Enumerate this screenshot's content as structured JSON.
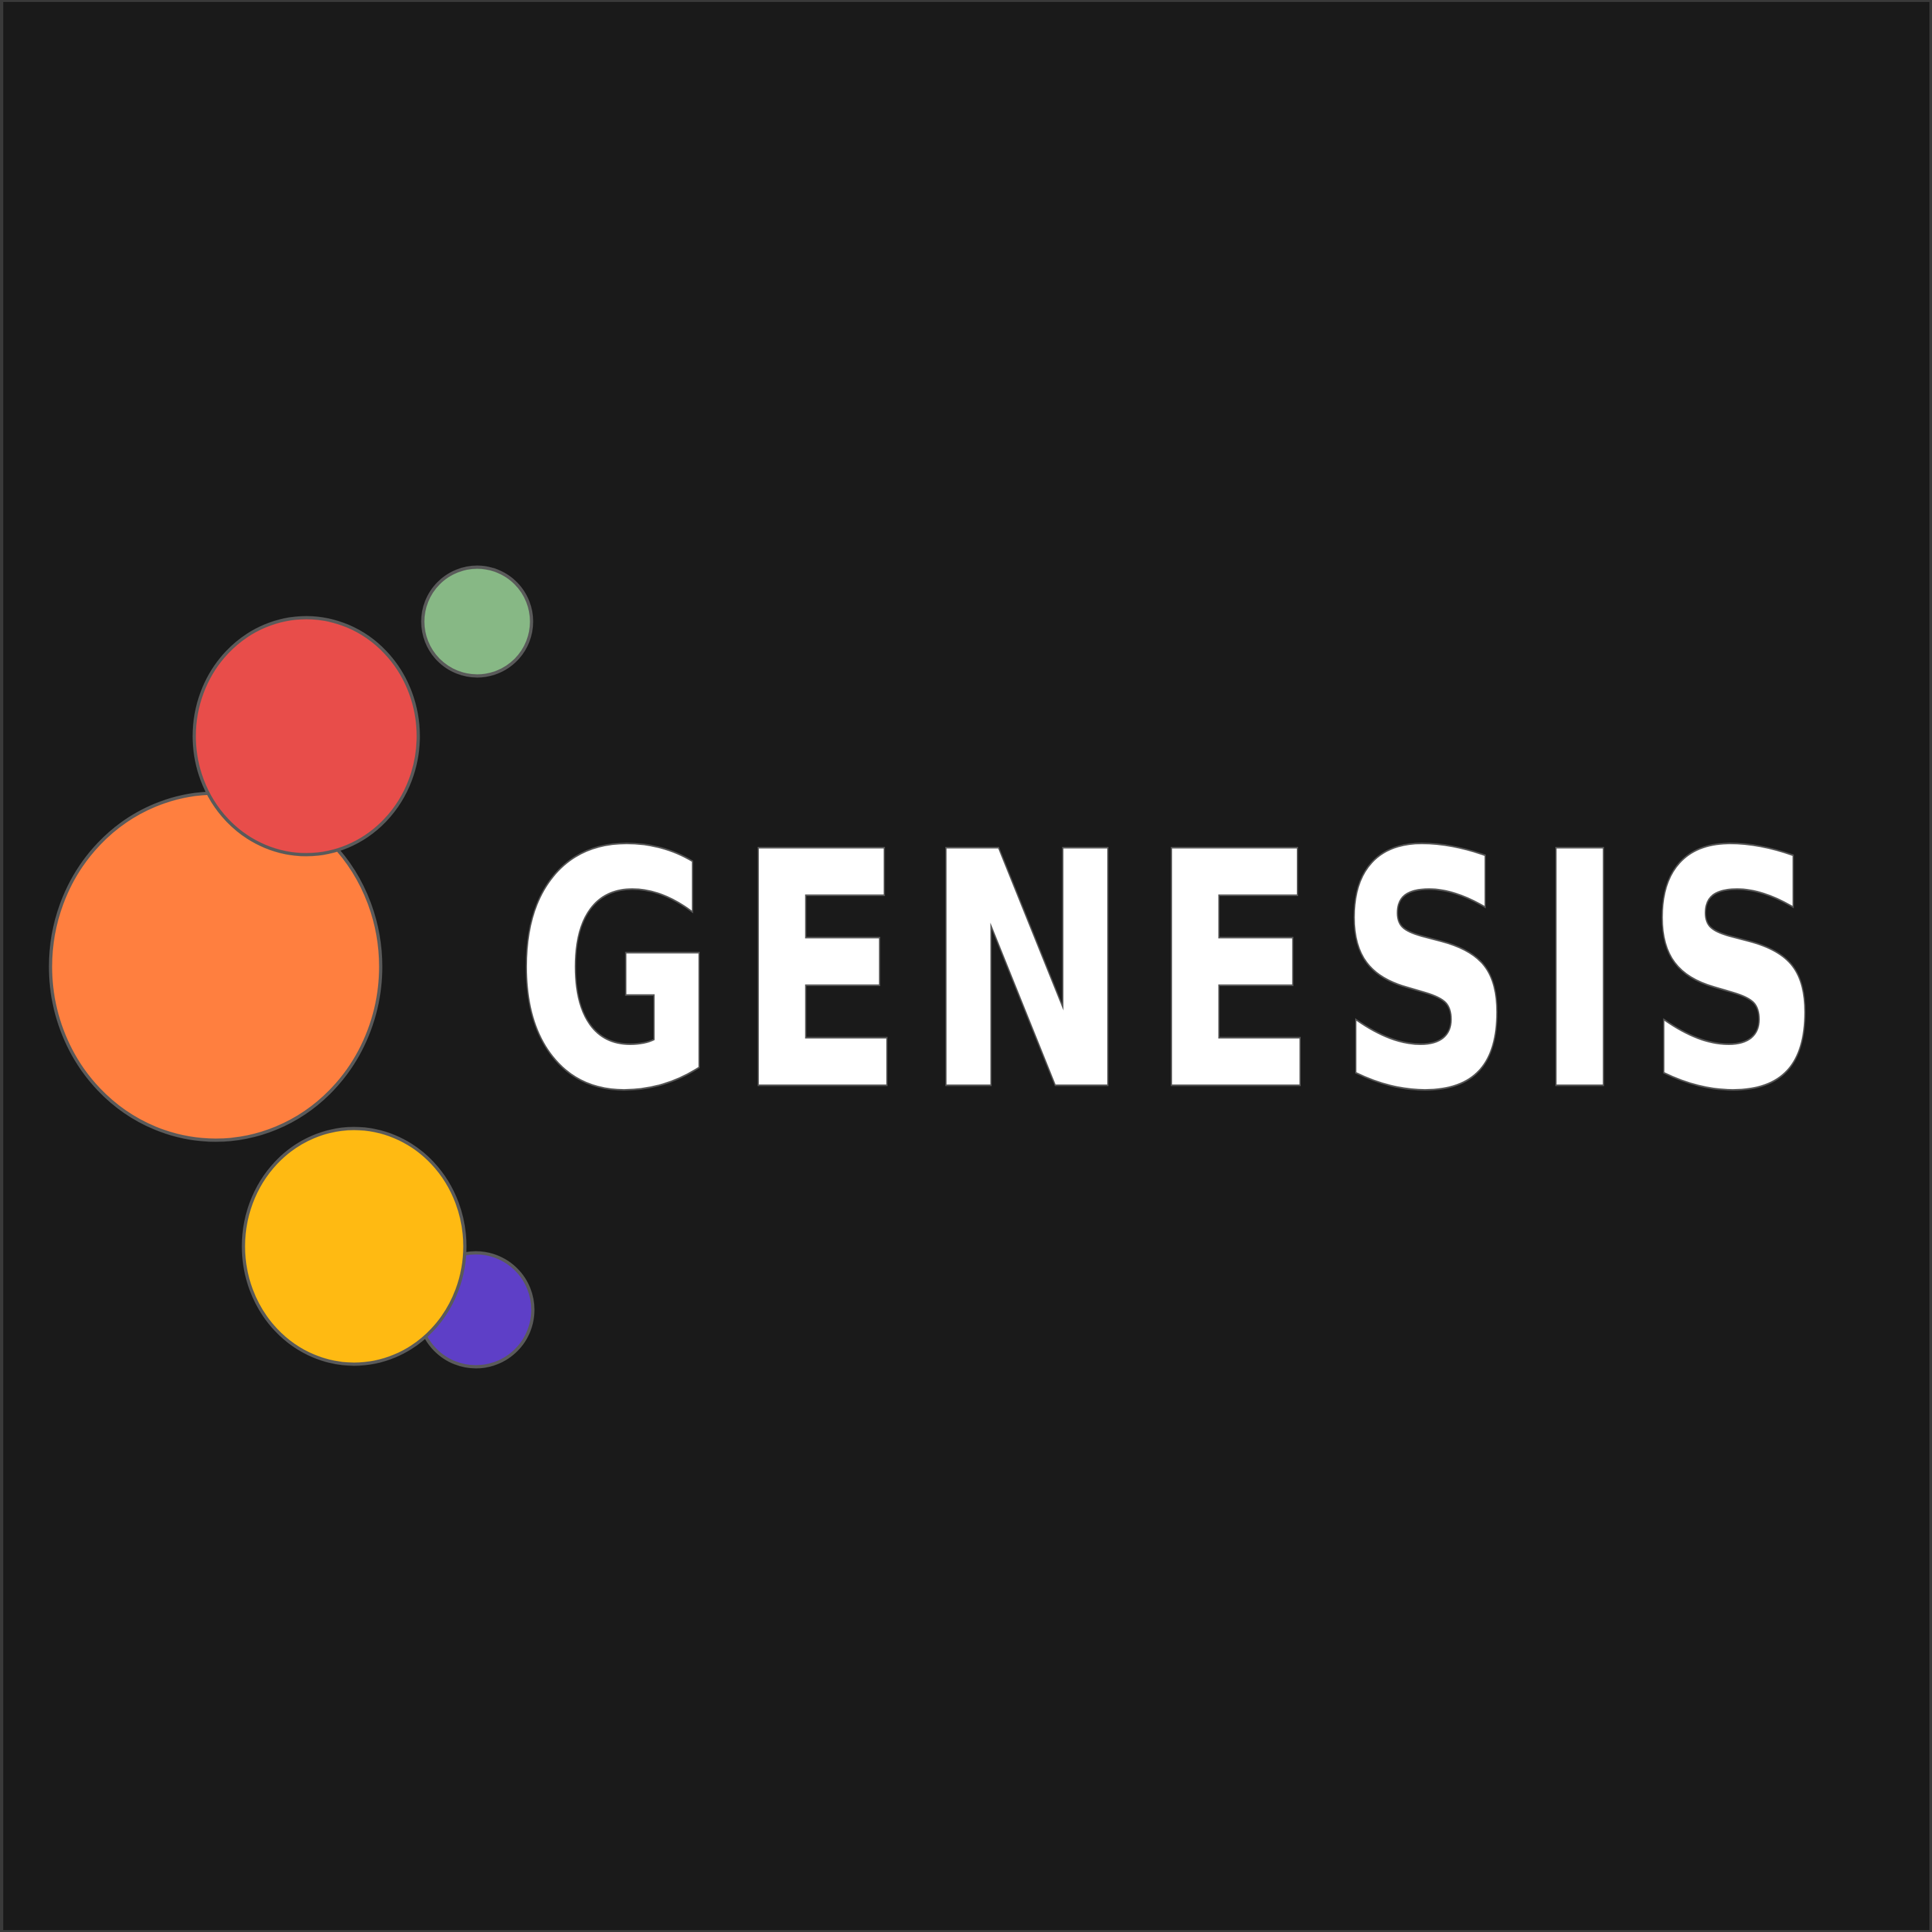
{
  "logo": {
    "wordmark": "GENESIS",
    "colors": {
      "background": "#1a1a1a",
      "text": "#ffffff",
      "outline": "#5a5a5a",
      "green": "#87b885",
      "red": "#e84d4a",
      "orange": "#ff7f3f",
      "yellow": "#ffba12",
      "purple": "#5e3fc7"
    }
  }
}
